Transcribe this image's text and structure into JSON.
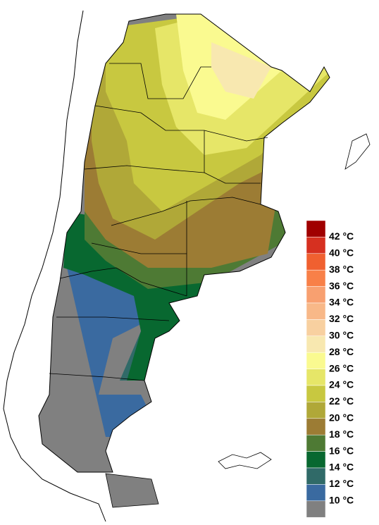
{
  "legend": {
    "labels": [
      "42 °C",
      "40 °C",
      "38 °C",
      "36 °C",
      "34 °C",
      "32 °C",
      "30 °C",
      "28 °C",
      "26 °C",
      "24 °C",
      "22 °C",
      "20 °C",
      "18 °C",
      "16 °C",
      "14 °C",
      "12 °C",
      "10 °C"
    ],
    "colors": [
      "#a00000",
      "#d63020",
      "#f06030",
      "#f88048",
      "#f8a070",
      "#f8b888",
      "#f8d0a0",
      "#f8e8b0",
      "#fafa90",
      "#e6e668",
      "#c8c840",
      "#b0a838",
      "#9c7c34",
      "#4e7a34",
      "#086830",
      "#306a68",
      "#3a6aa0",
      "#808080"
    ]
  }
}
